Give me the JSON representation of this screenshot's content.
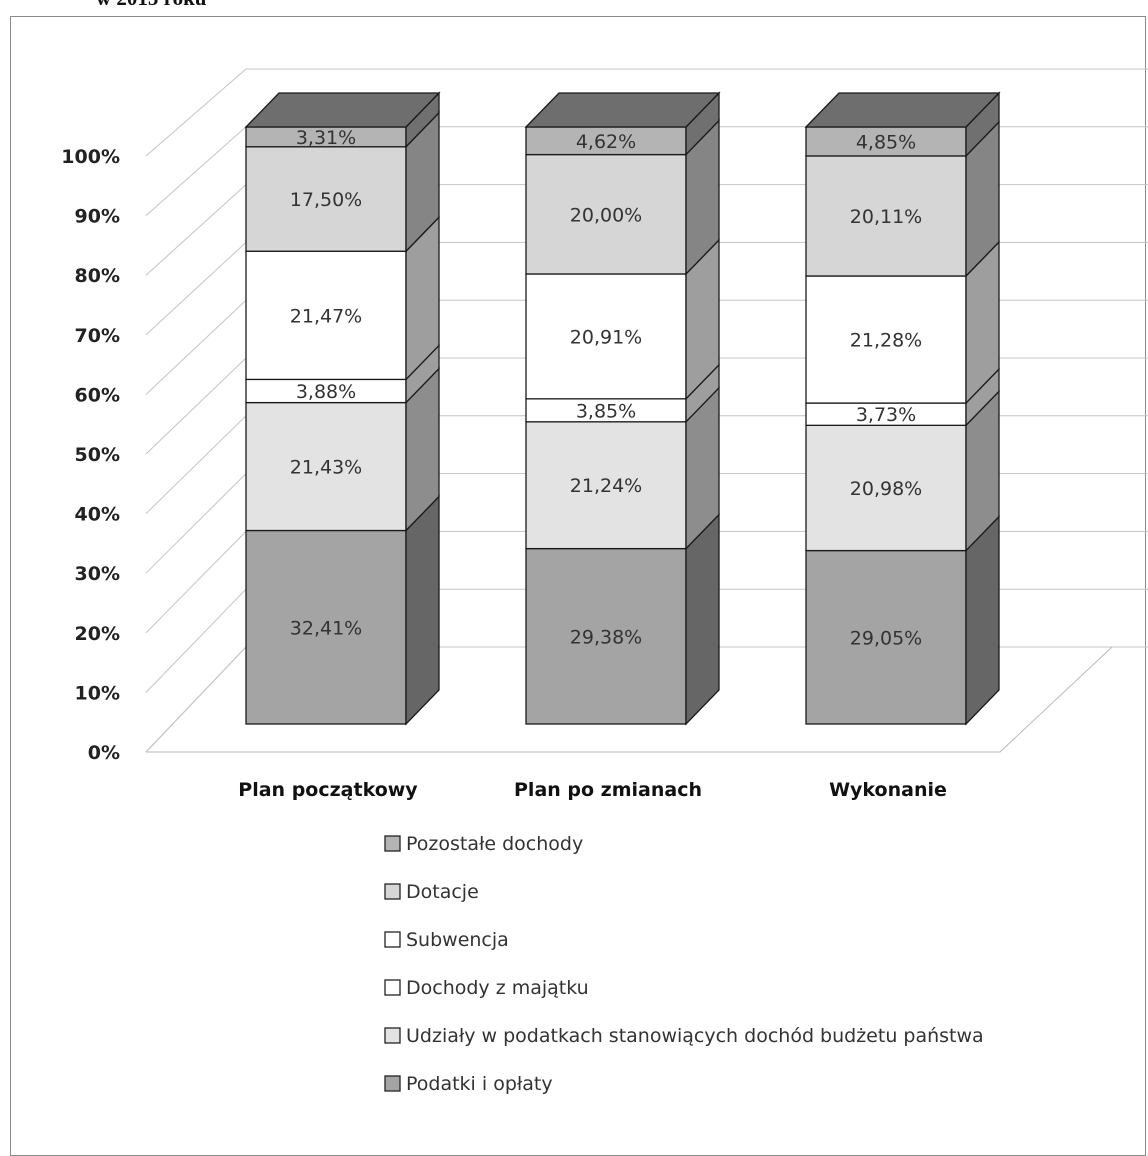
{
  "page": {
    "clipped_title": "w 2015 roku"
  },
  "chart_data": {
    "type": "bar",
    "stacked": true,
    "three_d": true,
    "categories": [
      "Plan początkowy",
      "Plan po zmianach",
      "Wykonanie"
    ],
    "y_ticks": [
      "0%",
      "10%",
      "20%",
      "30%",
      "40%",
      "50%",
      "60%",
      "70%",
      "80%",
      "90%",
      "100%"
    ],
    "ylim": [
      0,
      100
    ],
    "grid": true,
    "legend_position": "bottom",
    "series": [
      {
        "name": "Podatki i opłaty",
        "values": [
          32.41,
          29.38,
          29.05
        ],
        "labels": [
          "32,41%",
          "29,38%",
          "29,05%"
        ],
        "color": "#a4a4a4"
      },
      {
        "name": "Udziały w podatkach stanowiących dochód budżetu państwa",
        "values": [
          21.43,
          21.24,
          20.98
        ],
        "labels": [
          "21,43%",
          "21,24%",
          "20,98%"
        ],
        "color": "#e3e3e3"
      },
      {
        "name": "Dochody z majątku",
        "values": [
          3.88,
          3.85,
          3.73
        ],
        "labels": [
          "3,88%",
          "3,85%",
          "3,73%"
        ],
        "color": "#ffffff"
      },
      {
        "name": "Subwencja",
        "values": [
          21.47,
          20.91,
          21.28
        ],
        "labels": [
          "21,47%",
          "20,91%",
          "21,28%"
        ],
        "color": "#ffffff"
      },
      {
        "name": "Dotacje",
        "values": [
          17.5,
          20.0,
          20.11
        ],
        "labels": [
          "17,50%",
          "20,00%",
          "20,11%"
        ],
        "color": "#d6d6d6"
      },
      {
        "name": "Pozostałe dochody",
        "values": [
          3.31,
          4.62,
          4.85
        ],
        "labels": [
          "3,31%",
          "4,62%",
          "4,85%"
        ],
        "color": "#b4b4b4"
      }
    ],
    "legend_order": [
      "Pozostałe dochody",
      "Dotacje",
      "Subwencja",
      "Dochody z majątku",
      "Udziały w podatkach stanowiących dochód budżetu państwa",
      "Podatki i opłaty"
    ]
  }
}
